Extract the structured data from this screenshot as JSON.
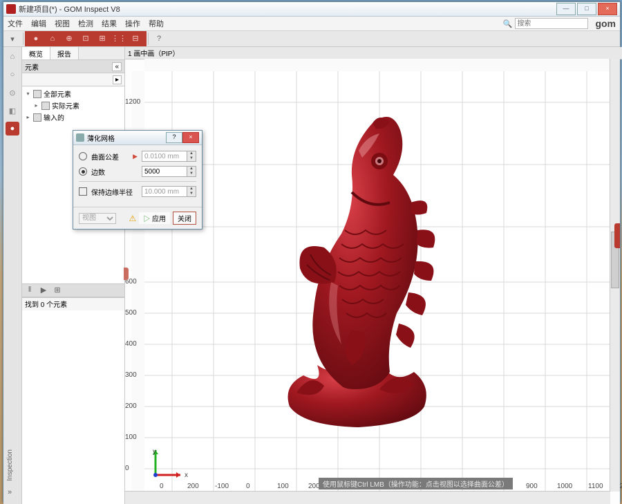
{
  "window": {
    "title": "新建项目(*) - GOM Inspect V8",
    "controls": {
      "min": "—",
      "max": "□",
      "close": "×"
    }
  },
  "menu": {
    "items": [
      "文件",
      "编辑",
      "视图",
      "检测",
      "结果",
      "操作",
      "帮助"
    ],
    "search_placeholder": "搜索",
    "brand": "gom"
  },
  "toolbar": {
    "left": {
      "dropdown": "▾"
    },
    "red_items": [
      "●",
      "⌂",
      "⊕",
      "⊡",
      "⊞",
      "⋮⋮",
      "⊟"
    ],
    "help": "?"
  },
  "leftstrip": {
    "icons": [
      "⌂",
      "○",
      "⊙",
      "◧",
      "●"
    ],
    "inspection": "Inspection",
    "expand": "»"
  },
  "panel": {
    "tabs": [
      "概览",
      "报告"
    ],
    "header": "元素",
    "header_dd": "«",
    "header_btn": "▸",
    "tree": [
      {
        "label": "全部元素",
        "level": 0,
        "exp": "▾"
      },
      {
        "label": "实际元素",
        "level": 1,
        "exp": "▸"
      },
      {
        "label": "输入的",
        "level": 0,
        "exp": "▸"
      }
    ],
    "mid_icons": [
      "‖",
      "▶",
      "⊞"
    ],
    "bottom": "找到 0 个元素"
  },
  "viewport": {
    "tab": "1 画中画（PIP）",
    "y_ticks": [
      1200,
      1000,
      800,
      600,
      500,
      400,
      300,
      200,
      100,
      0,
      -100
    ],
    "x_ticks": [
      0,
      200,
      "-100",
      0,
      100,
      200,
      300,
      400,
      500,
      600,
      700,
      800,
      900,
      1000,
      1100,
      1200
    ],
    "status": "使用鼠标键Ctrl LMB（操作功能：点击视图以选择曲面公差）",
    "axis": {
      "x": "x",
      "y": "y"
    },
    "model_color": "#a01820",
    "grid_color": "#d8d8d8",
    "background": "#ffffff"
  },
  "dialog": {
    "title": "薄化网格",
    "opt1": "曲面公差",
    "opt1_value": "0.0100 mm",
    "opt2": "边数",
    "opt2_value": "5000",
    "chk": "保持边缘半径",
    "chk_value": "10.000 mm",
    "foot_select": "视图",
    "apply": "▷ 应用",
    "close": "关闭"
  }
}
